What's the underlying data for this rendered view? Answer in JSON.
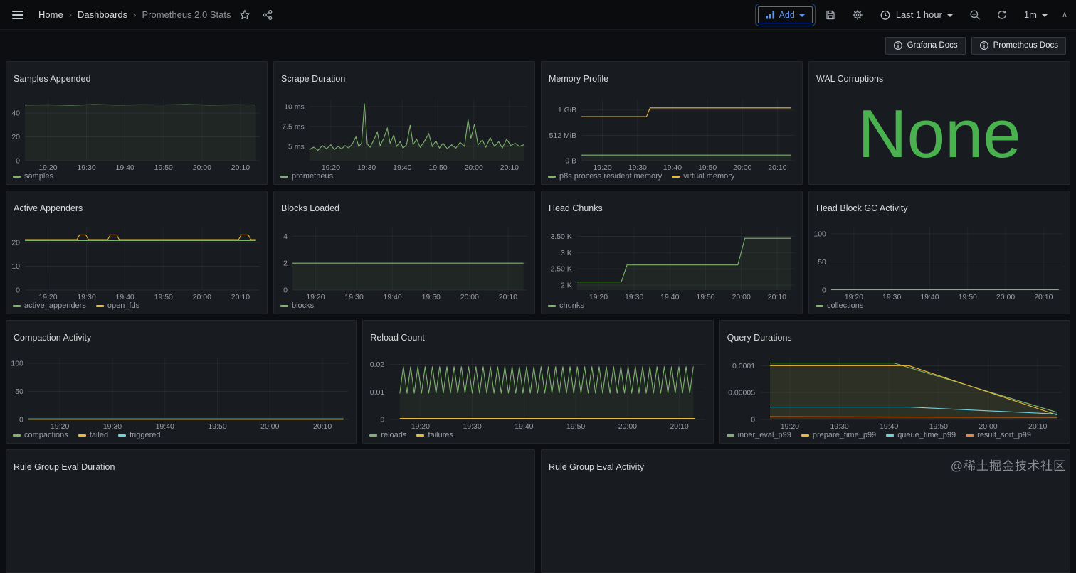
{
  "topnav": {
    "breadcrumb": [
      {
        "label": "Home"
      },
      {
        "label": "Dashboards"
      },
      {
        "label": "Prometheus 2.0 Stats"
      }
    ],
    "add_button": {
      "label": "Add"
    },
    "time_picker": {
      "label": "Last 1 hour"
    },
    "refresh_interval": "1m"
  },
  "toolbar": {
    "doc_buttons": [
      {
        "label": "Grafana Docs"
      },
      {
        "label": "Prometheus Docs"
      }
    ]
  },
  "watermark": "@稀土掘金技术社区",
  "colors": {
    "accent_blue": "#3d71d9",
    "green": "#7eb26d",
    "yellow": "#eab839",
    "light_blue": "#6ed0e0",
    "orange": "#ef843c",
    "none_green": "#49b24f"
  },
  "icons": [
    "menu-icon",
    "star-icon",
    "share-icon",
    "graph-icon",
    "caret-down-icon",
    "save-icon",
    "gear-icon",
    "clock-icon",
    "zoom-out-icon",
    "refresh-icon",
    "caret-up-icon",
    "info-icon"
  ],
  "panels": [
    {
      "title": "Samples Appended",
      "type": "timeseries",
      "chart": {
        "xlim": [
          0,
          61
        ],
        "xticks": [
          6,
          16,
          26,
          36,
          46,
          56
        ],
        "xtick_labels": [
          "19:20",
          "19:30",
          "19:40",
          "19:50",
          "20:00",
          "20:10"
        ],
        "ylim": [
          0,
          52
        ],
        "yticks": [
          0,
          20,
          40
        ],
        "ytick_labels": [
          "0",
          "20",
          "40"
        ],
        "series": [
          {
            "name": "samples",
            "color": "#7eb26d",
            "fill": true,
            "points": [
              [
                0,
                46.8
              ],
              [
                6,
                47
              ],
              [
                12,
                46.7
              ],
              [
                18,
                47.1
              ],
              [
                24,
                46.8
              ],
              [
                30,
                47
              ],
              [
                36,
                46.9
              ],
              [
                42,
                47.1
              ],
              [
                48,
                46.8
              ],
              [
                54,
                47
              ],
              [
                60,
                46.9
              ]
            ]
          }
        ]
      }
    },
    {
      "title": "Scrape Duration",
      "type": "timeseries",
      "chart": {
        "xlim": [
          0,
          61
        ],
        "xticks": [
          6,
          16,
          26,
          36,
          46,
          56
        ],
        "xtick_labels": [
          "19:20",
          "19:30",
          "19:40",
          "19:50",
          "20:00",
          "20:10"
        ],
        "ylim": [
          3.2,
          11
        ],
        "yticks": [
          5,
          7.5,
          10
        ],
        "ytick_labels": [
          "5 ms",
          "7.5 ms",
          "10 ms"
        ],
        "series": [
          {
            "name": "prometheus",
            "color": "#7eb26d",
            "fill": true,
            "points": [
              [
                0,
                4.6
              ],
              [
                1.2,
                4.9
              ],
              [
                2.4,
                4.5
              ],
              [
                3.6,
                5.1
              ],
              [
                4.8,
                4.7
              ],
              [
                6,
                5.2
              ],
              [
                7,
                4.6
              ],
              [
                8,
                5.0
              ],
              [
                9,
                4.7
              ],
              [
                10,
                5.1
              ],
              [
                11,
                4.8
              ],
              [
                12,
                5.3
              ],
              [
                13,
                6.2
              ],
              [
                13.8,
                5.0
              ],
              [
                14.6,
                5.4
              ],
              [
                15.4,
                10.4
              ],
              [
                16.2,
                5.3
              ],
              [
                17,
                4.9
              ],
              [
                18,
                5.8
              ],
              [
                19,
                6.8
              ],
              [
                19.8,
                5.1
              ],
              [
                20.8,
                6.0
              ],
              [
                21.8,
                7.3
              ],
              [
                22.6,
                5.4
              ],
              [
                23.6,
                6.4
              ],
              [
                24.4,
                5.0
              ],
              [
                25.4,
                5.6
              ],
              [
                26.2,
                4.8
              ],
              [
                27.2,
                5.2
              ],
              [
                28.2,
                7.7
              ],
              [
                29,
                5.2
              ],
              [
                30,
                5.9
              ],
              [
                31,
                4.9
              ],
              [
                32,
                5.5
              ],
              [
                33.4,
                6.6
              ],
              [
                34.4,
                5.0
              ],
              [
                35.4,
                5.7
              ],
              [
                36.4,
                4.8
              ],
              [
                37.4,
                5.4
              ],
              [
                38.6,
                4.7
              ],
              [
                39.8,
                5.2
              ],
              [
                41,
                4.8
              ],
              [
                42.2,
                5.5
              ],
              [
                43.4,
                5.0
              ],
              [
                44.4,
                8.4
              ],
              [
                45.2,
                6.0
              ],
              [
                46.2,
                7.8
              ],
              [
                47.2,
                5.2
              ],
              [
                48.4,
                5.8
              ],
              [
                49.4,
                4.9
              ],
              [
                50.6,
                6.1
              ],
              [
                51.8,
                5.0
              ],
              [
                53,
                5.6
              ],
              [
                54,
                4.8
              ],
              [
                55.2,
                5.9
              ],
              [
                56.4,
                5.1
              ],
              [
                57.6,
                5.4
              ],
              [
                58.8,
                5.0
              ],
              [
                60,
                5.2
              ]
            ]
          }
        ]
      }
    },
    {
      "title": "Memory Profile",
      "type": "timeseries",
      "chart": {
        "xlim": [
          0,
          61
        ],
        "xticks": [
          6,
          16,
          26,
          36,
          46,
          56
        ],
        "xtick_labels": [
          "19:20",
          "19:30",
          "19:40",
          "19:50",
          "20:00",
          "20:10"
        ],
        "ylim": [
          0,
          1.22
        ],
        "yticks": [
          0,
          0.5,
          1
        ],
        "ytick_labels": [
          "0 B",
          "512 MiB",
          "1 GiB"
        ],
        "series": [
          {
            "name": "p8s process resident memory",
            "color": "#7eb26d",
            "fill": true,
            "points": [
              [
                0,
                0.11
              ],
              [
                60,
                0.11
              ]
            ]
          },
          {
            "name": "virtual memory",
            "color": "#eab839",
            "fill": false,
            "points": [
              [
                0,
                0.87
              ],
              [
                18.6,
                0.87
              ],
              [
                19.6,
                1.04
              ],
              [
                60,
                1.04
              ]
            ]
          }
        ]
      }
    },
    {
      "title": "WAL Corruptions",
      "type": "text",
      "value": "None",
      "color": "#49b24f"
    },
    {
      "title": "Active Appenders",
      "type": "timeseries",
      "chart": {
        "xlim": [
          0,
          61
        ],
        "xticks": [
          6,
          16,
          26,
          36,
          46,
          56
        ],
        "xtick_labels": [
          "19:20",
          "19:30",
          "19:40",
          "19:50",
          "20:00",
          "20:10"
        ],
        "ylim": [
          0,
          26
        ],
        "yticks": [
          0,
          10,
          20
        ],
        "ytick_labels": [
          "0",
          "10",
          "20"
        ],
        "series": [
          {
            "name": "active_appenders",
            "color": "#7eb26d",
            "fill": false,
            "points": [
              [
                0,
                20.8
              ],
              [
                60,
                20.8
              ]
            ]
          },
          {
            "name": "open_fds",
            "color": "#eab839",
            "fill": false,
            "points": [
              [
                0,
                21.2
              ],
              [
                13.5,
                21.2
              ],
              [
                14.2,
                23.2
              ],
              [
                15.8,
                23.2
              ],
              [
                16.5,
                21.2
              ],
              [
                21.5,
                21.2
              ],
              [
                22.2,
                23.2
              ],
              [
                23.8,
                23.2
              ],
              [
                24.5,
                21.2
              ],
              [
                55.5,
                21.2
              ],
              [
                56.2,
                23.2
              ],
              [
                58,
                23.2
              ],
              [
                58.7,
                21.2
              ],
              [
                60,
                21.2
              ]
            ]
          }
        ]
      }
    },
    {
      "title": "Blocks Loaded",
      "type": "timeseries",
      "chart": {
        "xlim": [
          0,
          61
        ],
        "xticks": [
          6,
          16,
          26,
          36,
          46,
          56
        ],
        "xtick_labels": [
          "19:20",
          "19:30",
          "19:40",
          "19:50",
          "20:00",
          "20:10"
        ],
        "ylim": [
          0,
          4.6
        ],
        "yticks": [
          0,
          2,
          4
        ],
        "ytick_labels": [
          "0",
          "2",
          "4"
        ],
        "series": [
          {
            "name": "blocks",
            "color": "#7eb26d",
            "fill": true,
            "points": [
              [
                0,
                2
              ],
              [
                60,
                2
              ]
            ]
          }
        ]
      }
    },
    {
      "title": "Head Chunks",
      "type": "timeseries",
      "chart": {
        "xlim": [
          0,
          61
        ],
        "xticks": [
          6,
          16,
          26,
          36,
          46,
          56
        ],
        "xtick_labels": [
          "19:20",
          "19:30",
          "19:40",
          "19:50",
          "20:00",
          "20:10"
        ],
        "ylim": [
          1.85,
          3.75
        ],
        "yticks": [
          2,
          2.5,
          3,
          3.5
        ],
        "ytick_labels": [
          "2 K",
          "2.50 K",
          "3 K",
          "3.50 K"
        ],
        "series": [
          {
            "name": "chunks",
            "color": "#7eb26d",
            "fill": true,
            "points": [
              [
                0,
                2.1
              ],
              [
                12.4,
                2.1
              ],
              [
                14,
                2.62
              ],
              [
                45,
                2.62
              ],
              [
                47,
                3.44
              ],
              [
                60,
                3.44
              ]
            ]
          }
        ]
      }
    },
    {
      "title": "Head Block GC Activity",
      "type": "timeseries",
      "chart": {
        "xlim": [
          0,
          61
        ],
        "xticks": [
          6,
          16,
          26,
          36,
          46,
          56
        ],
        "xtick_labels": [
          "19:20",
          "19:30",
          "19:40",
          "19:50",
          "20:00",
          "20:10"
        ],
        "ylim": [
          0,
          110
        ],
        "yticks": [
          0,
          50,
          100
        ],
        "ytick_labels": [
          "0",
          "50",
          "100"
        ],
        "series": [
          {
            "name": "collections",
            "color": "#7eb26d",
            "fill": false,
            "points": [
              [
                0,
                0.8
              ],
              [
                60,
                0.8
              ]
            ]
          }
        ]
      }
    },
    {
      "title": "Compaction Activity",
      "type": "timeseries",
      "chart": {
        "xlim": [
          0,
          61
        ],
        "xticks": [
          6,
          16,
          26,
          36,
          46,
          56
        ],
        "xtick_labels": [
          "19:20",
          "19:30",
          "19:40",
          "19:50",
          "20:00",
          "20:10"
        ],
        "ylim": [
          0,
          110
        ],
        "yticks": [
          0,
          50,
          100
        ],
        "ytick_labels": [
          "0",
          "50",
          "100"
        ],
        "series": [
          {
            "name": "compactions",
            "color": "#7eb26d",
            "fill": false,
            "points": [
              [
                0,
                0.5
              ],
              [
                60,
                0.5
              ]
            ]
          },
          {
            "name": "failed",
            "color": "#eab839",
            "fill": false,
            "points": [
              [
                0,
                0.2
              ],
              [
                60,
                0.2
              ]
            ]
          },
          {
            "name": "triggered",
            "color": "#6ed0e0",
            "fill": false,
            "points": [
              [
                0,
                1.0
              ],
              [
                60,
                1.0
              ]
            ]
          }
        ]
      }
    },
    {
      "title": "Reload Count",
      "type": "timeseries",
      "chart": {
        "xlim": [
          0,
          61
        ],
        "xticks": [
          6,
          16,
          26,
          36,
          46,
          56
        ],
        "xtick_labels": [
          "19:20",
          "19:30",
          "19:40",
          "19:50",
          "20:00",
          "20:10"
        ],
        "ylim": [
          0,
          0.0225
        ],
        "yticks": [
          0,
          0.01,
          0.02
        ],
        "ytick_labels": [
          "0",
          "0.01",
          "0.02"
        ],
        "series": [
          {
            "name": "reloads",
            "color": "#7eb26d",
            "fill": true,
            "zigzag": {
              "x0": 2,
              "x1": 59,
              "step": 0.7,
              "low": 0.0095,
              "high": 0.0193
            }
          },
          {
            "name": "failures",
            "color": "#eab839",
            "fill": false,
            "points": [
              [
                2,
                0.0004
              ],
              [
                59,
                0.0004
              ]
            ]
          }
        ]
      }
    },
    {
      "title": "Query Durations",
      "type": "timeseries",
      "chart": {
        "xlim": [
          0,
          61
        ],
        "xticks": [
          6,
          16,
          26,
          36,
          46,
          56
        ],
        "xtick_labels": [
          "19:20",
          "19:30",
          "19:40",
          "19:50",
          "20:00",
          "20:10"
        ],
        "ylim": [
          0,
          0.000115
        ],
        "yticks": [
          0,
          5e-05,
          0.0001
        ],
        "ytick_labels": [
          "0",
          "0.00005",
          "0.0001"
        ],
        "series": [
          {
            "name": "inner_eval_p99",
            "color": "#7eb26d",
            "fill": true,
            "points": [
              [
                2,
                0.000105
              ],
              [
                27,
                0.000105
              ],
              [
                60,
                1.3e-05
              ]
            ]
          },
          {
            "name": "prepare_time_p99",
            "color": "#eab839",
            "fill": true,
            "points": [
              [
                2,
                0.0001
              ],
              [
                30,
                0.0001
              ],
              [
                60,
                8e-06
              ]
            ]
          },
          {
            "name": "queue_time_p99",
            "color": "#6ed0e0",
            "fill": false,
            "points": [
              [
                2,
                2.3e-05
              ],
              [
                30,
                2.3e-05
              ],
              [
                60,
                1e-05
              ]
            ]
          },
          {
            "name": "result_sort_p99",
            "color": "#ef843c",
            "fill": false,
            "points": [
              [
                2,
                5e-06
              ],
              [
                60,
                4e-06
              ]
            ]
          }
        ]
      }
    },
    {
      "title": "Rule Group Eval Duration",
      "type": "stub"
    },
    {
      "title": "Rule Group Eval Activity",
      "type": "stub"
    }
  ]
}
